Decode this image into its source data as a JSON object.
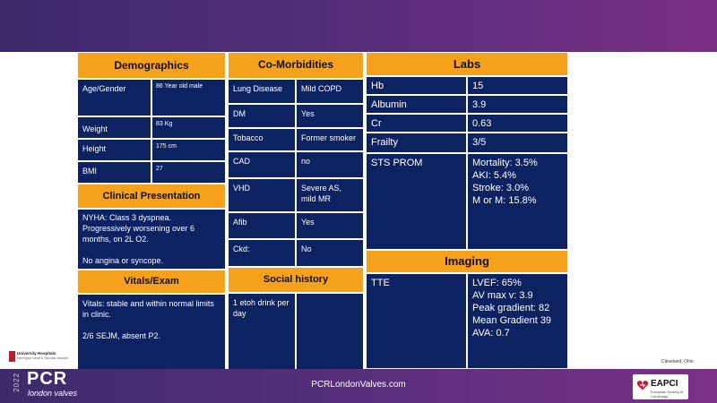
{
  "demographics": {
    "title": "Demographics",
    "rows": [
      {
        "label": "Age/Gender",
        "value": "86 Year old male"
      },
      {
        "label": "Weight",
        "value": "83 Kg"
      },
      {
        "label": "Height",
        "value": "175 cm"
      },
      {
        "label": "BMI",
        "value": "27"
      }
    ]
  },
  "clinical": {
    "title": "Clinical Presentation",
    "text": "NYHA: Class 3 dyspnea. Progressively worsening over 6 months, on 2L O2.\n\nNo angina or syncope."
  },
  "vitals": {
    "title": "Vitals/Exam",
    "text": "Vitals: stable and within normal limits in clinic.\n\n 2/6 SEJM, absent P2."
  },
  "comorbidities": {
    "title": "Co-Morbidities",
    "rows": [
      {
        "label": "Lung Disease",
        "value": "Mild COPD"
      },
      {
        "label": "DM",
        "value": "Yes"
      },
      {
        "label": "Tobacco",
        "value": "Former smoker"
      },
      {
        "label": "CAD",
        "value": "no"
      },
      {
        "label": "VHD",
        "value": "Severe AS, mild MR"
      },
      {
        "label": "Afib",
        "value": "Yes"
      },
      {
        "label": "Ckd:",
        "value": "No"
      }
    ]
  },
  "social": {
    "title": "Social history",
    "text": "1 etoh drink per day"
  },
  "labs": {
    "title": "Labs",
    "rows": [
      {
        "label": "Hb",
        "value": "15"
      },
      {
        "label": "Albumin",
        "value": "3.9"
      },
      {
        "label": "Cr",
        "value": "0.63"
      },
      {
        "label": "Frailty",
        "value": "3/5"
      }
    ],
    "sts_label": "STS PROM",
    "sts_value": "Mortality: 3.5%\nAKI: 5.4%\nStroke: 3.0%\nM or M: 15.8%"
  },
  "imaging": {
    "title": "Imaging",
    "tte_label": "TTE",
    "tte_value": "LVEF: 65%\nAV max v: 3.9\nPeak gradient: 82\nMean Gradient 39\nAVA: 0.7"
  },
  "footer": {
    "url": "PCRLondonValves.com",
    "pcr_year": "2022",
    "pcr_logo": "PCR",
    "pcr_sub": "london valves",
    "eapci": "EAPCI",
    "eapci_sub": "European Society of Cardiology",
    "location": "Cleveland, Ohio",
    "hospital_name": "University Hospitals",
    "hospital_sub": "Harrington Heart & Vascular Institute"
  },
  "colors": {
    "header": "#f5a11c",
    "cell": "#0d2260",
    "bar": "#5a2e7c"
  }
}
